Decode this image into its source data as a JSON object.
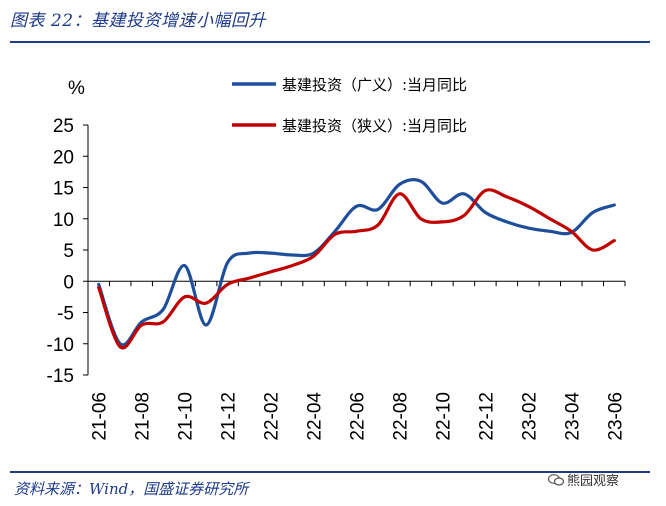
{
  "figure": {
    "title": "图表 22：基建投资增速小幅回升",
    "source": "资料来源：Wind，国盛证券研究所",
    "watermark": "熊园观察",
    "watermark_icon": "wechat-icon"
  },
  "colors": {
    "broad": "#1f4e9a",
    "narrow": "#c00000",
    "rule": "#1f3a8a"
  },
  "chart_data": {
    "type": "line",
    "title": "",
    "ylabel": "%",
    "ylim": [
      -15,
      25
    ],
    "yticks": [
      25,
      20,
      15,
      10,
      5,
      0,
      -5,
      -10,
      -15
    ],
    "x": [
      "2021-06",
      "2021-07",
      "2021-08",
      "2021-09",
      "2021-10",
      "2021-11",
      "2021-12",
      "2022-01",
      "2022-02",
      "2022-03",
      "2022-04",
      "2022-05",
      "2022-06",
      "2022-07",
      "2022-08",
      "2022-09",
      "2022-10",
      "2022-11",
      "2022-12",
      "2023-01",
      "2023-02",
      "2023-03",
      "2023-04",
      "2023-05",
      "2023-06"
    ],
    "xtick_labels": [
      "21-06",
      "21-08",
      "21-10",
      "21-12",
      "22-02",
      "22-04",
      "22-06",
      "22-08",
      "22-10",
      "22-12",
      "23-02",
      "23-04",
      "23-06"
    ],
    "legend_position": "top-right",
    "series": [
      {
        "name": "基建投资（广义）:当月同比",
        "color_key": "broad",
        "values": [
          -0.5,
          -10.0,
          -6.5,
          -4.5,
          2.5,
          -7.0,
          3.0,
          4.5,
          4.5,
          4.2,
          4.5,
          8.0,
          12.0,
          11.5,
          15.5,
          16.0,
          12.5,
          14.0,
          11.0,
          9.5,
          8.5,
          8.0,
          7.8,
          11.0,
          12.2
        ]
      },
      {
        "name": "基建投资（狭义）:当月同比",
        "color_key": "narrow",
        "values": [
          -1.0,
          -10.5,
          -7.0,
          -6.5,
          -2.5,
          -3.5,
          -0.5,
          0.5,
          1.5,
          2.5,
          4.0,
          7.5,
          8.0,
          9.0,
          14.0,
          10.0,
          9.5,
          10.5,
          14.5,
          13.5,
          12.0,
          10.0,
          8.0,
          5.0,
          6.5
        ]
      }
    ]
  }
}
